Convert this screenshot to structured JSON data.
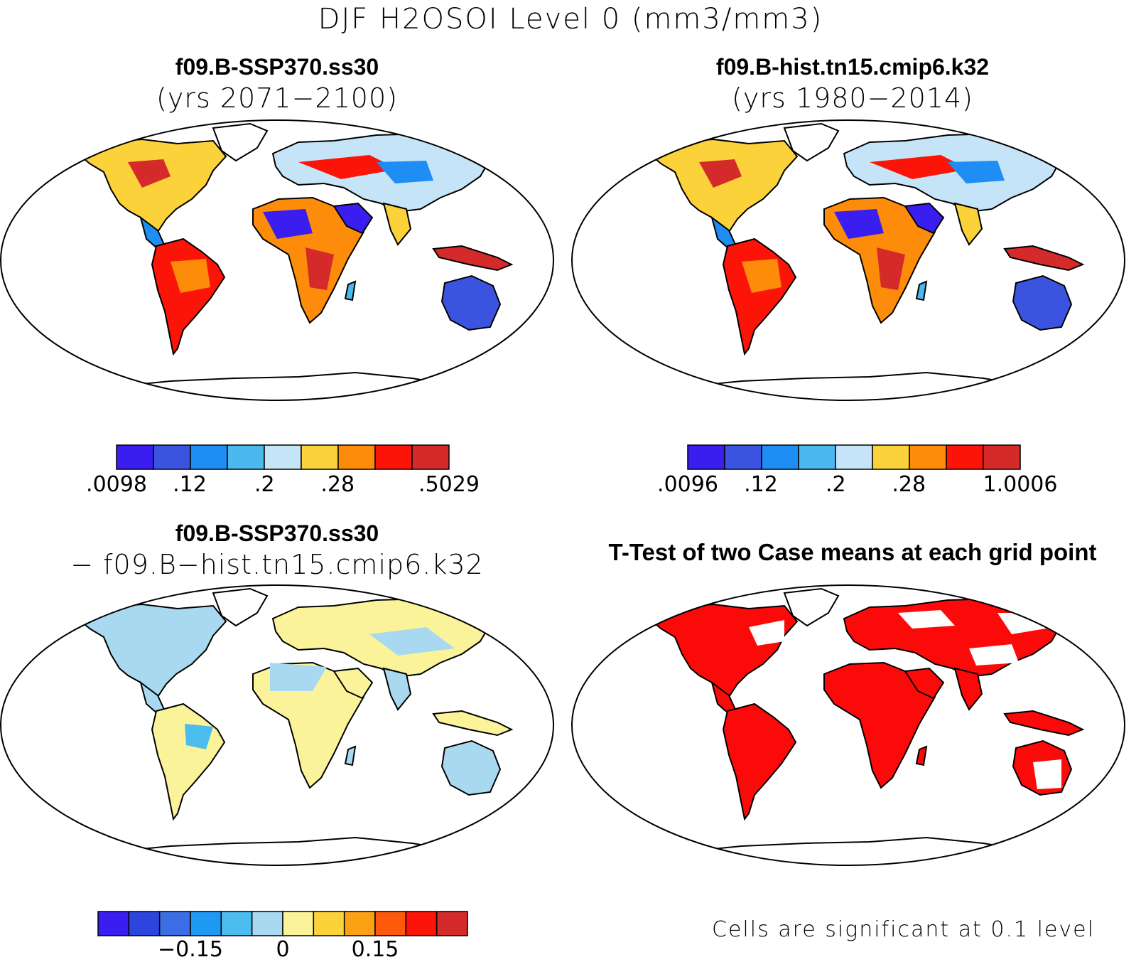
{
  "figure": {
    "title": "DJF H2OSOI Level 0 (mm3/mm3)"
  },
  "colors": {
    "case_scale": [
      "#3a1ef0",
      "#3b54e0",
      "#1e8ef5",
      "#4bb8ee",
      "#c6e4f7",
      "#fcd23a",
      "#fc8c0a",
      "#fc1408",
      "#d42a2a"
    ],
    "diff_scale": [
      "#3a1ef0",
      "#2d45df",
      "#3b6ee5",
      "#1e9af5",
      "#4bbcee",
      "#a9d9f0",
      "#fbf39a",
      "#fcd23a",
      "#fca014",
      "#fc5a0a",
      "#fc1408",
      "#d42a2a"
    ],
    "ttest_significant": "#fc0a0a"
  },
  "panels": {
    "top_left": {
      "title": "f09.B-SSP370.ss30",
      "subtitle": "(yrs 2071−2100)",
      "colorbar_labels": [
        ".0098",
        ".12",
        ".2",
        ".28",
        ".5029"
      ]
    },
    "top_right": {
      "title": "f09.B-hist.tn15.cmip6.k32",
      "subtitle": "(yrs 1980−2014)",
      "colorbar_labels": [
        ".0096",
        ".12",
        ".2",
        ".28",
        "1.0006"
      ]
    },
    "bottom_left": {
      "title": "f09.B-SSP370.ss30",
      "subtitle": "− f09.B−hist.tn15.cmip6.k32",
      "colorbar_labels": [
        "−0.15",
        "0",
        "0.15"
      ]
    },
    "bottom_right": {
      "title": "T-Test of two Case means at each grid point",
      "footnote": "Cells are significant at 0.1 level"
    }
  }
}
